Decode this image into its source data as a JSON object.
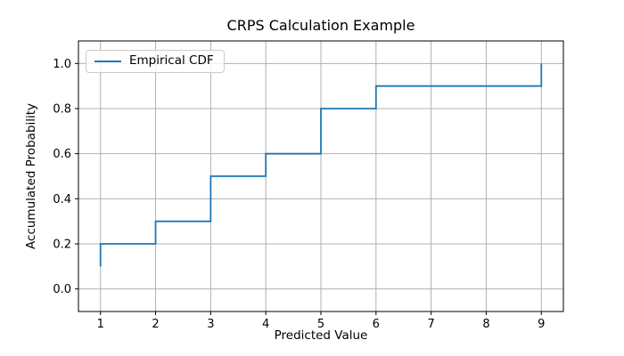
{
  "figure": {
    "background": "#ffffff",
    "spine_color": "#000000",
    "tick_label_color": "#000000"
  },
  "legend": {
    "label": "Empirical CDF",
    "line_color": "#1f77b4",
    "position": "upper-left"
  },
  "chart_data": {
    "type": "line",
    "subtype": "step-post",
    "title": "CRPS Calculation Example",
    "xlabel": "Predicted Value",
    "ylabel": "Accumulated Probability",
    "series": [
      {
        "name": "Empirical CDF",
        "color": "#1f77b4",
        "step_x": [
          1,
          1,
          2,
          2,
          3,
          3,
          4,
          4,
          5,
          5,
          6,
          6,
          9,
          9
        ],
        "step_y": [
          0.1,
          0.2,
          0.2,
          0.3,
          0.3,
          0.5,
          0.5,
          0.6,
          0.6,
          0.8,
          0.8,
          0.9,
          0.9,
          1.0
        ]
      }
    ],
    "step_jumps": [
      {
        "x": 1,
        "from": 0.1,
        "to": 0.2
      },
      {
        "x": 2,
        "from": 0.2,
        "to": 0.3
      },
      {
        "x": 3,
        "from": 0.3,
        "to": 0.5
      },
      {
        "x": 4,
        "from": 0.5,
        "to": 0.6
      },
      {
        "x": 5,
        "from": 0.6,
        "to": 0.8
      },
      {
        "x": 6,
        "from": 0.8,
        "to": 0.9
      },
      {
        "x": 9,
        "from": 0.9,
        "to": 1.0
      }
    ],
    "xlim": [
      0.6,
      9.4
    ],
    "ylim": [
      -0.1,
      1.1
    ],
    "xticks": [
      1,
      2,
      3,
      4,
      5,
      6,
      7,
      8,
      9
    ],
    "xtick_labels": [
      "1",
      "2",
      "3",
      "4",
      "5",
      "6",
      "7",
      "8",
      "9"
    ],
    "yticks": [
      0.0,
      0.2,
      0.4,
      0.6,
      0.8,
      1.0
    ],
    "ytick_labels": [
      "0.0",
      "0.2",
      "0.4",
      "0.6",
      "0.8",
      "1.0"
    ],
    "grid": true,
    "grid_color": "#b0b0b0",
    "legend_position": "upper-left"
  }
}
